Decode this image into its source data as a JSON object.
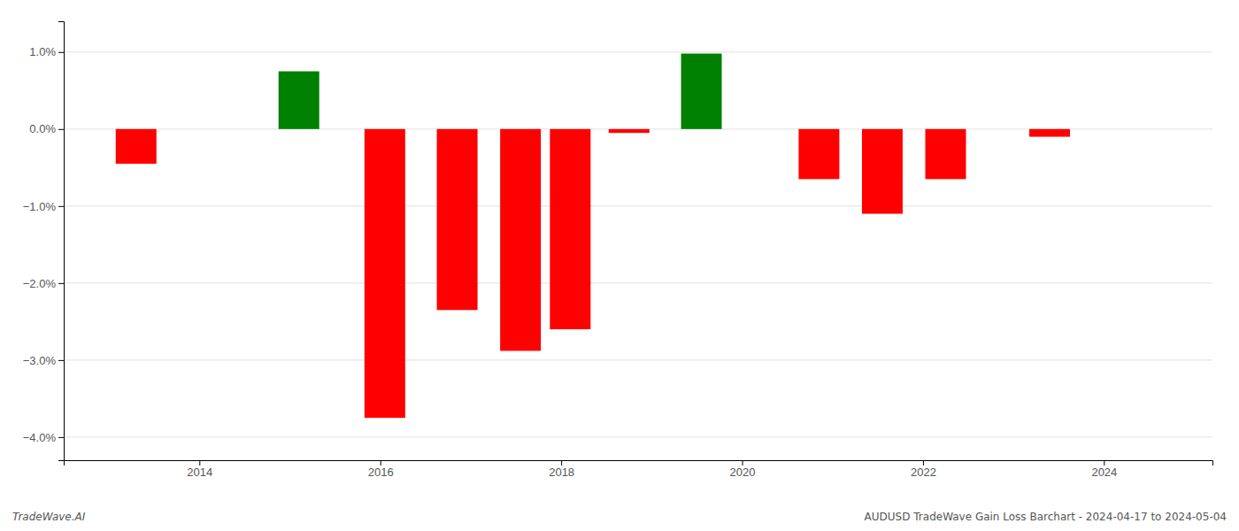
{
  "chart_data": {
    "type": "bar",
    "title": "AUDUSD TradeWave Gain Loss Barchart - 2024-04-17 to 2024-05-04",
    "annotations": [
      "TradeWave.AI"
    ],
    "x": [
      2013.3,
      2015.1,
      2016.05,
      2016.85,
      2017.55,
      2018.1,
      2018.75,
      2019.55,
      2020.85,
      2021.55,
      2022.25,
      2023.4
    ],
    "values": [
      -0.45,
      0.75,
      -3.75,
      -2.35,
      -2.88,
      -2.6,
      -0.05,
      0.98,
      -0.65,
      -1.1,
      -0.65,
      -0.1
    ],
    "colors": [
      "#ff0000",
      "#008000",
      "#ff0000",
      "#ff0000",
      "#ff0000",
      "#ff0000",
      "#ff0000",
      "#008000",
      "#ff0000",
      "#ff0000",
      "#ff0000",
      "#ff0000"
    ],
    "xlim": [
      2012.5,
      2025.2
    ],
    "ylim": [
      -4.3,
      1.4
    ],
    "xticks": [
      2014,
      2016,
      2018,
      2020,
      2022,
      2024
    ],
    "yticks": [
      {
        "value": -4.0,
        "label": "−4.0%"
      },
      {
        "value": -3.0,
        "label": "−3.0%"
      },
      {
        "value": -2.0,
        "label": "−2.0%"
      },
      {
        "value": -1.0,
        "label": "−1.0%"
      },
      {
        "value": 0.0,
        "label": "0.0%"
      },
      {
        "value": 1.0,
        "label": "1.0%"
      }
    ],
    "grid": true
  }
}
